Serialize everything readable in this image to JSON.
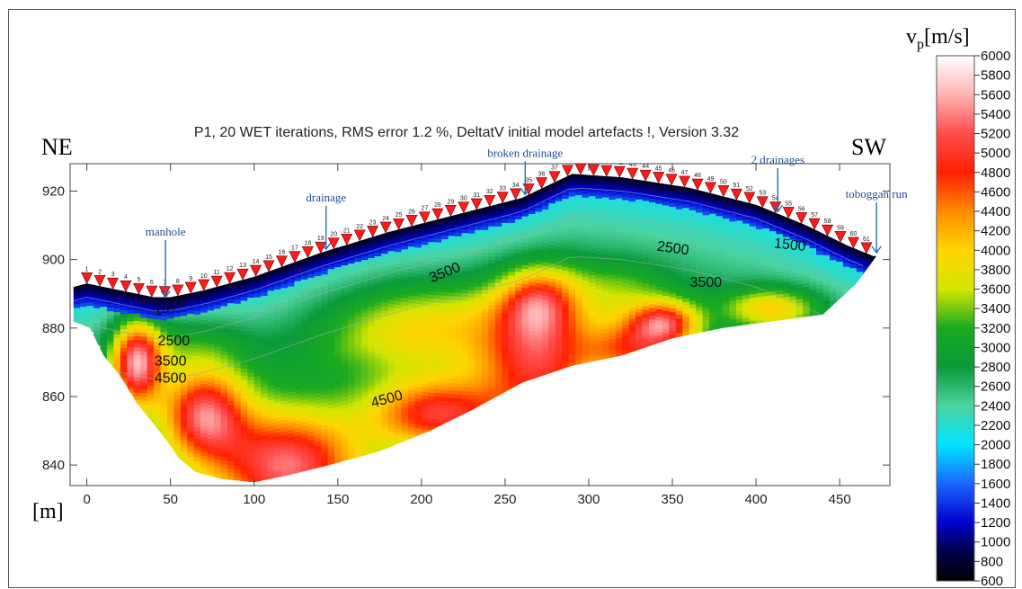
{
  "chart_data": {
    "type": "heatmap",
    "title": "P1, 20 WET iterations, RMS error 1.2 %, DeltatV initial model artefacts !, Version 3.32",
    "direction_left": "NE",
    "direction_right": "SW",
    "xlabel": "[m]",
    "ylabel": "",
    "xlim": [
      -10,
      480
    ],
    "ylim": [
      834,
      928
    ],
    "x_ticks": [
      0,
      50,
      100,
      150,
      200,
      250,
      300,
      350,
      400,
      450
    ],
    "y_ticks": [
      840,
      860,
      880,
      900,
      920
    ],
    "colorbar": {
      "label_main": "v",
      "label_sub": "p",
      "label_unit": "[m/s]",
      "min": 600,
      "max": 6000,
      "ticks": [
        6000,
        5800,
        5600,
        5400,
        5200,
        5000,
        4800,
        4600,
        4400,
        4200,
        4000,
        3800,
        3600,
        3400,
        3200,
        3000,
        2800,
        2600,
        2400,
        2200,
        2000,
        1800,
        1600,
        1400,
        1200,
        1000,
        800,
        600
      ],
      "colors": [
        {
          "v": 600,
          "c": "#000000"
        },
        {
          "v": 900,
          "c": "#00004d"
        },
        {
          "v": 1200,
          "c": "#0000cc"
        },
        {
          "v": 1600,
          "c": "#1a66ff"
        },
        {
          "v": 2000,
          "c": "#00e5ff"
        },
        {
          "v": 2400,
          "c": "#4dd2a0"
        },
        {
          "v": 2800,
          "c": "#0b9a3a"
        },
        {
          "v": 3200,
          "c": "#1aaa20"
        },
        {
          "v": 3600,
          "c": "#d4e600"
        },
        {
          "v": 4000,
          "c": "#ffd400"
        },
        {
          "v": 4400,
          "c": "#ff8c00"
        },
        {
          "v": 4800,
          "c": "#ff2000"
        },
        {
          "v": 5200,
          "c": "#ff4d4d"
        },
        {
          "v": 5600,
          "c": "#ffb3b3"
        },
        {
          "v": 6000,
          "c": "#ffffff"
        }
      ]
    },
    "surface": [
      [
        -8,
        892
      ],
      [
        0,
        893
      ],
      [
        20,
        891
      ],
      [
        40,
        889
      ],
      [
        50,
        889
      ],
      [
        70,
        891
      ],
      [
        100,
        895
      ],
      [
        140,
        902
      ],
      [
        180,
        908
      ],
      [
        220,
        913
      ],
      [
        260,
        918
      ],
      [
        290,
        925
      ],
      [
        320,
        924
      ],
      [
        360,
        921
      ],
      [
        400,
        916
      ],
      [
        430,
        910
      ],
      [
        455,
        904
      ],
      [
        470,
        901
      ]
    ],
    "bottom": [
      [
        -8,
        882
      ],
      [
        2,
        880
      ],
      [
        10,
        872
      ],
      [
        20,
        866
      ],
      [
        30,
        858
      ],
      [
        40,
        852
      ],
      [
        48,
        847
      ],
      [
        55,
        842
      ],
      [
        65,
        838
      ],
      [
        80,
        836
      ],
      [
        100,
        835
      ],
      [
        120,
        837
      ],
      [
        145,
        840
      ],
      [
        175,
        844
      ],
      [
        205,
        850
      ],
      [
        230,
        856
      ],
      [
        260,
        864
      ],
      [
        290,
        869
      ],
      [
        320,
        872
      ],
      [
        350,
        877
      ],
      [
        380,
        880
      ],
      [
        410,
        882
      ],
      [
        440,
        884
      ],
      [
        460,
        893
      ],
      [
        472,
        901
      ]
    ],
    "fields": {
      "base": 2000,
      "blobs": [
        {
          "x": 120,
          "y": 840,
          "sx": 45,
          "sy": 16,
          "a": 2600
        },
        {
          "x": 70,
          "y": 855,
          "sx": 25,
          "sy": 13,
          "a": 2400
        },
        {
          "x": 30,
          "y": 870,
          "sx": 15,
          "sy": 12,
          "a": 2800
        },
        {
          "x": 210,
          "y": 855,
          "sx": 40,
          "sy": 10,
          "a": 2200
        },
        {
          "x": 270,
          "y": 870,
          "sx": 35,
          "sy": 20,
          "a": 2100
        },
        {
          "x": 330,
          "y": 874,
          "sx": 30,
          "sy": 8,
          "a": 1800
        },
        {
          "x": 345,
          "y": 882,
          "sx": 20,
          "sy": 6,
          "a": 2000
        },
        {
          "x": 200,
          "y": 880,
          "sx": 60,
          "sy": 14,
          "a": 1200
        },
        {
          "x": 410,
          "y": 886,
          "sx": 28,
          "sy": 6,
          "a": 1300
        },
        {
          "x": 270,
          "y": 888,
          "sx": 22,
          "sy": 10,
          "a": 1500
        },
        {
          "x": 320,
          "y": 890,
          "sx": 30,
          "sy": 10,
          "a": 600
        },
        {
          "x": 60,
          "y": 875,
          "sx": 40,
          "sy": 10,
          "a": 700
        }
      ],
      "surface_low": 1500,
      "surface_depth": 6
    },
    "contours": [
      {
        "label": "1500",
        "x": 50,
        "y": 885,
        "rotate": -20
      },
      {
        "label": "2500",
        "x": 52,
        "y": 875,
        "rotate": 0
      },
      {
        "label": "3500",
        "x": 50,
        "y": 869,
        "rotate": 0
      },
      {
        "label": "4500",
        "x": 50,
        "y": 864,
        "rotate": 0
      },
      {
        "label": "4500",
        "x": 180,
        "y": 858,
        "rotate": -15
      },
      {
        "label": "3500",
        "x": 215,
        "y": 895,
        "rotate": -22
      },
      {
        "label": "2500",
        "x": 350,
        "y": 902,
        "rotate": 8
      },
      {
        "label": "3500",
        "x": 370,
        "y": 892,
        "rotate": 0
      },
      {
        "label": "1500",
        "x": 420,
        "y": 903,
        "rotate": 6
      }
    ],
    "annotations": [
      {
        "label": "manhole",
        "x": 47,
        "ty": 907,
        "ay": 889
      },
      {
        "label": "drainage",
        "x": 143,
        "ty": 917,
        "ay": 903
      },
      {
        "label": "broken drainage",
        "x": 262,
        "ty": 930,
        "ay": 919
      },
      {
        "label": "2 drainages",
        "x": 413,
        "ty": 928,
        "ay": 914
      },
      {
        "label": "toboggan run",
        "x": 472,
        "ty": 918,
        "ay": 902
      }
    ],
    "geophone_count": 61
  }
}
